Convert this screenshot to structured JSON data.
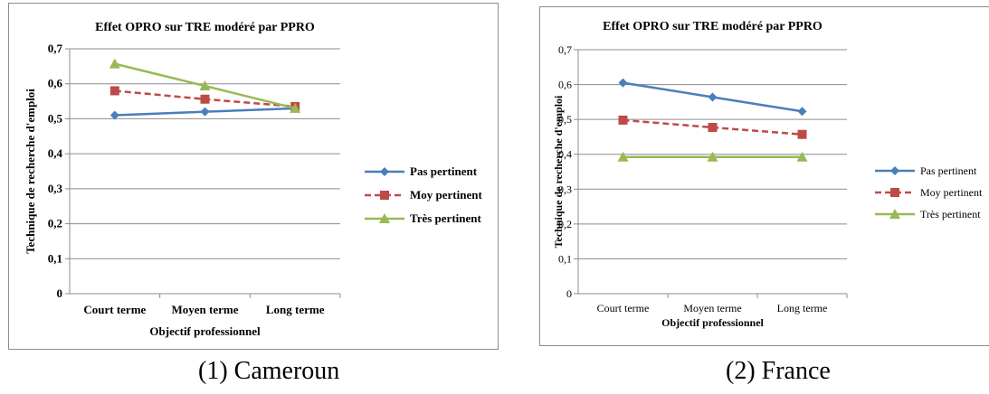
{
  "chart_data": [
    {
      "type": "line",
      "title": "Effet OPRO sur TRE modéré par PPRO",
      "xlabel": "Objectif professionnel",
      "ylabel": "Technique de recherche d'emploi",
      "categories": [
        "Court terme",
        "Moyen terme",
        "Long terme"
      ],
      "ylim": [
        0,
        0.7
      ],
      "yticks": [
        "0",
        "0,1",
        "0,2",
        "0,3",
        "0,4",
        "0,5",
        "0,6",
        "0,7"
      ],
      "grid": true,
      "legend_position": "right",
      "series": [
        {
          "name": "Pas pertinent",
          "values": [
            0.51,
            0.52,
            0.53
          ],
          "color": "#4a7ebb",
          "marker": "diamond",
          "dash": "solid"
        },
        {
          "name": "Moy pertinent",
          "values": [
            0.58,
            0.556,
            0.535
          ],
          "color": "#be4b48",
          "marker": "square",
          "dash": "dashed"
        },
        {
          "name": "Très pertinent",
          "values": [
            0.657,
            0.594,
            0.53
          ],
          "color": "#98b954",
          "marker": "triangle",
          "dash": "solid"
        }
      ],
      "caption": "(1) Cameroun"
    },
    {
      "type": "line",
      "title": "Effet OPRO sur TRE modéré par PPRO",
      "xlabel": "Objectif professionnel",
      "ylabel": "Technique de recherche d'emploi",
      "categories": [
        "Court terme",
        "Moyen terme",
        "Long terme"
      ],
      "ylim": [
        0,
        0.7
      ],
      "yticks": [
        "0",
        "0,1",
        "0,2",
        "0,3",
        "0,4",
        "0,5",
        "0,6",
        "0,7"
      ],
      "grid": true,
      "legend_position": "right",
      "series": [
        {
          "name": "Pas pertinent",
          "values": [
            0.605,
            0.564,
            0.523
          ],
          "color": "#4a7ebb",
          "marker": "diamond",
          "dash": "solid"
        },
        {
          "name": "Moy pertinent",
          "values": [
            0.498,
            0.477,
            0.457
          ],
          "color": "#be4b48",
          "marker": "square",
          "dash": "dashed"
        },
        {
          "name": "Très pertinent",
          "values": [
            0.392,
            0.392,
            0.392
          ],
          "color": "#98b954",
          "marker": "triangle",
          "dash": "solid"
        }
      ],
      "caption": "(2) France"
    }
  ]
}
